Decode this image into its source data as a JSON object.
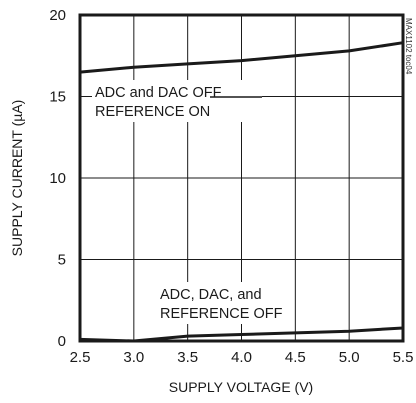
{
  "chart_data": {
    "type": "line",
    "title": "",
    "xlabel": "SUPPLY VOLTAGE (V)",
    "ylabel": "SUPPLY CURRENT (µA)",
    "xlim": [
      2.5,
      5.5
    ],
    "ylim": [
      0,
      20
    ],
    "xticks": [
      "2.5",
      "3.0",
      "3.5",
      "4.0",
      "4.5",
      "5.0",
      "5.5"
    ],
    "yticks": [
      "0",
      "5",
      "10",
      "15",
      "20"
    ],
    "grid": true,
    "series": [
      {
        "name": "ADC and DAC OFF REFERENCE ON",
        "x": [
          2.5,
          3.0,
          3.5,
          4.0,
          4.5,
          5.0,
          5.5
        ],
        "y": [
          16.5,
          16.8,
          17.0,
          17.2,
          17.5,
          17.8,
          18.3
        ]
      },
      {
        "name": "ADC, DAC, and REFERENCE OFF",
        "x": [
          2.5,
          3.0,
          3.5,
          4.0,
          4.5,
          5.0,
          5.5
        ],
        "y": [
          0.1,
          0.0,
          0.3,
          0.4,
          0.5,
          0.6,
          0.8
        ]
      }
    ],
    "annotations": [
      {
        "line1": "ADC and DAC OFF",
        "line2": "REFERENCE ON",
        "series": 0
      },
      {
        "line1": "ADC, DAC, and",
        "line2": "REFERENCE OFF",
        "series": 1
      }
    ],
    "side_code": "MAX1102 toc04",
    "colors": {
      "line": "#1a1a1a",
      "grid": "#1a1a1a",
      "background": "#ffffff"
    }
  }
}
